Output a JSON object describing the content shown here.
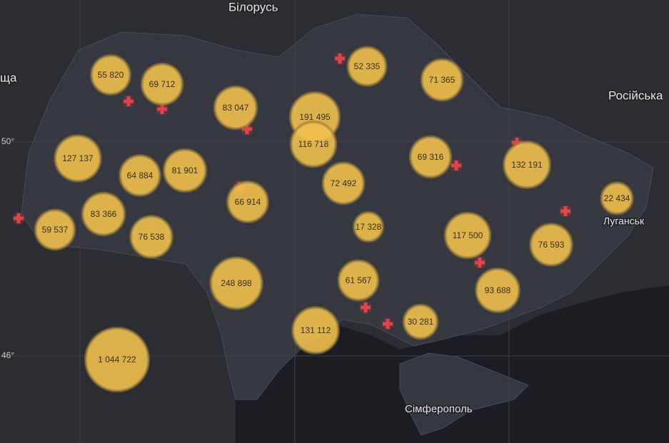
{
  "places": [
    "Білорусь",
    "Російська",
    "Луганськ",
    "Сімферополь",
    "ща"
  ],
  "graticule": [
    "50°",
    "46°"
  ],
  "bubbles": [
    {
      "label": "55 820",
      "value": 55820
    },
    {
      "label": "69 712",
      "value": 69712
    },
    {
      "label": "83 047",
      "value": 83047
    },
    {
      "label": "191 495",
      "value": 191495
    },
    {
      "label": "116 718",
      "value": 116718
    },
    {
      "label": "52 335",
      "value": 52335
    },
    {
      "label": "71 365",
      "value": 71365
    },
    {
      "label": "127 137",
      "value": 127137
    },
    {
      "label": "64 884",
      "value": 64884
    },
    {
      "label": "81 901",
      "value": 81901
    },
    {
      "label": "66 914",
      "value": 66914
    },
    {
      "label": "72 492",
      "value": 72492
    },
    {
      "label": "69 316",
      "value": 69316
    },
    {
      "label": "132 191",
      "value": 132191
    },
    {
      "label": "22 434",
      "value": 22434
    },
    {
      "label": "59 537",
      "value": 59537
    },
    {
      "label": "83 366",
      "value": 83366
    },
    {
      "label": "76 538",
      "value": 76538
    },
    {
      "label": "17 328",
      "value": 17328
    },
    {
      "label": "117 500",
      "value": 117500
    },
    {
      "label": "76 593",
      "value": 76593
    },
    {
      "label": "248 898",
      "value": 248898
    },
    {
      "label": "61 567",
      "value": 61567
    },
    {
      "label": "93 688",
      "value": 93688
    },
    {
      "label": "131 112",
      "value": 131112
    },
    {
      "label": "30 281",
      "value": 30281
    },
    {
      "label": "1 044 722",
      "value": 1044722
    }
  ]
}
